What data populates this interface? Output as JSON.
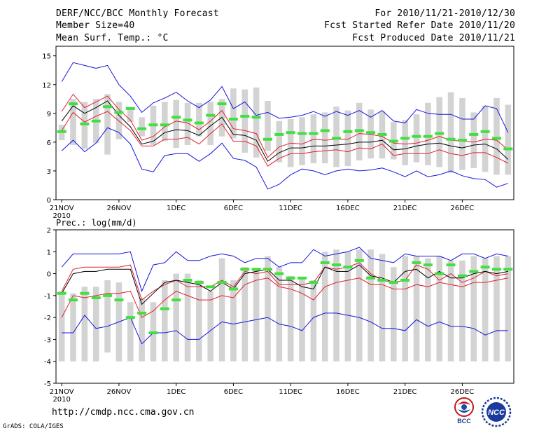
{
  "header": {
    "title": "DERF/NCC/BCC Monthly Forecast",
    "member_size": "Member Size=40",
    "variable": "Mean Surf. Temp.: °C",
    "period": "For 2010/11/21-2010/12/30",
    "started": "Fcst Started Refer Date 2010/11/20",
    "produced": "Fcst Produced Date 2010/11/21"
  },
  "footer": {
    "url": "http://cmdp.ncc.cma.gov.cn",
    "credit": "GrADS: COLA/IGES",
    "logo_left_text": "BCC",
    "logo_right_text": "NCC"
  },
  "colors": {
    "box": "#d3d3d3",
    "median": "#000000",
    "quartile": "#e0202a",
    "extreme": "#1414e0",
    "obs": "#40e040"
  },
  "chart_data": [
    {
      "type": "box",
      "title": "",
      "ylabel": "",
      "ylim": [
        0,
        16
      ],
      "yticks": [
        0,
        3,
        6,
        9,
        12,
        15
      ],
      "xlim": [
        0.5,
        40.5
      ],
      "xticks": [
        1,
        6,
        11,
        16,
        21,
        26,
        31,
        36
      ],
      "xtick_labels": [
        "21NOV",
        "26NOV",
        "1DEC",
        "6DEC",
        "11DEC",
        "16DEC",
        "21DEC",
        "26DEC"
      ],
      "year_label": "2010",
      "days": [
        1,
        2,
        3,
        4,
        5,
        6,
        7,
        8,
        9,
        10,
        11,
        12,
        13,
        14,
        15,
        16,
        17,
        18,
        19,
        20,
        21,
        22,
        23,
        24,
        25,
        26,
        27,
        28,
        29,
        30,
        31,
        32,
        33,
        34,
        35,
        36,
        37,
        38,
        39,
        40
      ],
      "series": {
        "box_high": [
          7.8,
          10.5,
          10.2,
          10.5,
          11.0,
          10.2,
          9.4,
          8.6,
          9.8,
          10.2,
          10.4,
          10.1,
          10.1,
          10.2,
          10.5,
          11.6,
          11.5,
          11.7,
          10.3,
          8.2,
          8.4,
          8.6,
          8.9,
          9.1,
          9.7,
          9.3,
          10.1,
          9.4,
          9.2,
          8.1,
          8.3,
          8.9,
          10.1,
          10.7,
          11.2,
          10.6,
          9.1,
          9.8,
          10.6,
          9.9
        ],
        "box_low": [
          6.2,
          5.7,
          5.3,
          5.9,
          4.7,
          6.3,
          8.1,
          6.6,
          5.7,
          6.1,
          5.4,
          5.7,
          6.6,
          5.7,
          6.6,
          6.4,
          4.9,
          4.4,
          5.1,
          3.9,
          3.4,
          3.6,
          3.8,
          3.8,
          3.4,
          3.5,
          4.1,
          4.3,
          4.3,
          4.2,
          3.6,
          3.9,
          3.6,
          3.4,
          2.8,
          3.1,
          3.3,
          2.9,
          2.6,
          2.6
        ],
        "max": [
          12.3,
          14.3,
          14.0,
          13.7,
          14.0,
          12.0,
          10.8,
          9.1,
          10.1,
          10.6,
          11.2,
          10.3,
          9.6,
          10.4,
          11.8,
          9.5,
          10.2,
          8.8,
          9.1,
          8.5,
          8.6,
          8.8,
          9.2,
          8.7,
          9.2,
          8.8,
          9.3,
          8.6,
          9.3,
          8.2,
          8.0,
          9.4,
          9.0,
          8.9,
          8.9,
          8.4,
          8.4,
          9.8,
          9.5,
          7.0
        ],
        "q3": [
          9.2,
          11.0,
          9.6,
          10.2,
          10.8,
          9.4,
          8.3,
          6.2,
          6.6,
          7.6,
          8.2,
          8.0,
          7.3,
          8.2,
          9.3,
          7.4,
          7.2,
          6.9,
          4.4,
          5.5,
          5.9,
          5.8,
          6.3,
          6.2,
          6.3,
          6.3,
          6.9,
          6.8,
          6.6,
          5.9,
          5.8,
          5.9,
          6.2,
          6.6,
          6.2,
          6.1,
          6.0,
          6.3,
          6.2,
          5.2
        ],
        "median": [
          8.2,
          9.8,
          9.0,
          9.6,
          10.3,
          8.8,
          7.6,
          5.8,
          6.1,
          7.0,
          7.3,
          7.2,
          6.7,
          7.7,
          8.6,
          6.8,
          6.7,
          6.2,
          4.0,
          4.9,
          5.4,
          5.4,
          5.6,
          5.6,
          5.7,
          5.8,
          6.0,
          6.0,
          6.2,
          5.2,
          5.3,
          5.6,
          5.8,
          5.9,
          5.6,
          5.4,
          5.7,
          5.8,
          5.3,
          4.2
        ],
        "q1": [
          7.2,
          9.1,
          8.1,
          8.7,
          9.2,
          8.2,
          7.2,
          5.6,
          5.6,
          6.3,
          6.3,
          6.5,
          5.8,
          6.9,
          7.9,
          6.1,
          6.1,
          5.6,
          3.5,
          4.3,
          4.8,
          4.8,
          5.0,
          5.1,
          5.2,
          5.0,
          5.4,
          5.3,
          5.8,
          4.6,
          4.8,
          4.8,
          4.8,
          5.2,
          4.8,
          4.6,
          4.9,
          4.9,
          4.4,
          3.8
        ],
        "min": [
          5.1,
          6.2,
          5.0,
          5.9,
          7.5,
          7.0,
          5.8,
          3.2,
          2.9,
          4.6,
          4.8,
          4.8,
          4.0,
          4.8,
          5.9,
          4.3,
          4.1,
          3.4,
          1.1,
          1.6,
          2.6,
          3.2,
          3.0,
          2.6,
          3.0,
          3.2,
          3.0,
          3.1,
          3.3,
          2.9,
          2.4,
          3.0,
          2.4,
          2.6,
          3.0,
          2.5,
          2.2,
          2.1,
          1.3,
          1.7
        ],
        "observed": [
          7.1,
          10.0,
          7.9,
          8.2,
          9.7,
          9.1,
          9.5,
          7.4,
          7.8,
          7.8,
          8.6,
          8.3,
          8.0,
          8.8,
          10.0,
          8.4,
          8.7,
          8.6,
          6.3,
          6.8,
          7.0,
          6.9,
          6.9,
          7.2,
          6.4,
          7.1,
          7.2,
          7.0,
          6.8,
          6.1,
          6.4,
          6.6,
          6.6,
          6.9,
          6.3,
          6.2,
          6.8,
          7.1,
          6.4,
          5.3
        ]
      }
    },
    {
      "type": "box",
      "title": "Prec.: log(mm/d)",
      "ylabel": "",
      "ylim": [
        -5,
        2
      ],
      "yticks": [
        -5,
        -4,
        -3,
        -2,
        -1,
        0,
        1,
        2
      ],
      "xlim": [
        0.5,
        40.5
      ],
      "xticks": [
        1,
        6,
        11,
        16,
        21,
        26,
        31,
        36
      ],
      "xtick_labels": [
        "21NOV",
        "26NOV",
        "1DEC",
        "6DEC",
        "11DEC",
        "16DEC",
        "21DEC",
        "26DEC"
      ],
      "year_label": "2010",
      "days": [
        1,
        2,
        3,
        4,
        5,
        6,
        7,
        8,
        9,
        10,
        11,
        12,
        13,
        14,
        15,
        16,
        17,
        18,
        19,
        20,
        21,
        22,
        23,
        24,
        25,
        26,
        27,
        28,
        29,
        30,
        31,
        32,
        33,
        34,
        35,
        36,
        37,
        38,
        39,
        40
      ],
      "series": {
        "box_high": [
          -0.8,
          -0.9,
          -0.6,
          -0.6,
          -0.3,
          -0.4,
          -1.3,
          -1.1,
          -1.3,
          -0.3,
          0.0,
          0.0,
          -0.3,
          -0.8,
          0.7,
          -0.3,
          0.3,
          0.2,
          0.8,
          0.3,
          -0.1,
          -0.2,
          -0.3,
          1.0,
          1.1,
          1.0,
          1.1,
          1.1,
          0.9,
          0.3,
          0.8,
          0.8,
          0.7,
          0.8,
          0.6,
          0.6,
          0.8,
          0.7,
          0.8,
          0.8
        ],
        "box_low": [
          -4.0,
          -4.0,
          -4.0,
          -4.0,
          -3.6,
          -4.0,
          -4.0,
          -4.0,
          -4.0,
          -4.0,
          -4.0,
          -4.0,
          -4.0,
          -4.0,
          -4.0,
          -4.0,
          -4.0,
          -4.0,
          -4.0,
          -4.0,
          -4.0,
          -4.0,
          -4.0,
          -4.0,
          -4.0,
          -4.0,
          -4.0,
          -4.0,
          -4.0,
          -4.0,
          -4.0,
          -4.0,
          -4.0,
          -4.0,
          -4.0,
          -4.0,
          -4.0,
          -4.0,
          -4.0,
          -4.0
        ],
        "max": [
          0.3,
          0.9,
          0.9,
          0.9,
          0.9,
          0.9,
          1.0,
          -0.8,
          0.4,
          0.5,
          1.0,
          0.6,
          0.6,
          0.8,
          0.9,
          0.8,
          0.5,
          0.7,
          0.7,
          0.3,
          0.5,
          0.5,
          1.1,
          0.8,
          0.9,
          1.0,
          1.2,
          0.7,
          0.6,
          0.5,
          0.9,
          0.8,
          0.8,
          0.8,
          0.6,
          0.9,
          0.9,
          0.7,
          0.9,
          0.8
        ],
        "q3": [
          -0.8,
          0.2,
          0.3,
          0.3,
          0.3,
          0.3,
          0.4,
          -1.2,
          -0.8,
          -0.5,
          -0.3,
          -0.6,
          -0.6,
          -0.6,
          -0.3,
          -0.6,
          0.1,
          0.0,
          0.1,
          -0.5,
          -0.5,
          -0.5,
          -0.4,
          0.3,
          0.2,
          0.3,
          0.5,
          0.0,
          -0.3,
          -0.4,
          -0.3,
          0.4,
          0.2,
          -0.3,
          0.0,
          -0.4,
          -0.2,
          0.1,
          -0.1,
          0.0
        ],
        "median": [
          -0.9,
          0.0,
          0.1,
          0.1,
          0.2,
          0.2,
          0.2,
          -1.4,
          -0.9,
          -0.4,
          -0.3,
          -0.4,
          -0.5,
          -0.8,
          -0.4,
          -0.7,
          0.0,
          0.1,
          0.2,
          -0.3,
          -0.3,
          -0.6,
          -0.7,
          0.3,
          0.1,
          0.1,
          0.4,
          -0.1,
          -0.2,
          -0.4,
          0.1,
          0.2,
          -0.2,
          0.1,
          -0.2,
          -0.2,
          0.0,
          0.1,
          0.0,
          0.1
        ],
        "q1": [
          -2.0,
          -1.0,
          -1.1,
          -1.0,
          -0.9,
          -0.9,
          -0.8,
          -2.0,
          -1.7,
          -1.2,
          -0.8,
          -1.0,
          -1.2,
          -1.2,
          -1.0,
          -1.1,
          -0.5,
          -0.3,
          -0.2,
          -0.6,
          -0.7,
          -0.9,
          -1.2,
          -0.6,
          -0.4,
          -0.3,
          -0.2,
          -0.5,
          -0.5,
          -0.7,
          -0.7,
          -0.5,
          -0.6,
          -0.4,
          -0.5,
          -0.6,
          -0.4,
          -0.4,
          -0.3,
          -0.2
        ],
        "min": [
          -2.7,
          -2.7,
          -1.9,
          -2.5,
          -2.4,
          -2.2,
          -2.0,
          -3.2,
          -2.7,
          -2.7,
          -2.6,
          -3.0,
          -3.0,
          -2.6,
          -2.2,
          -2.3,
          -2.2,
          -2.1,
          -2.0,
          -2.3,
          -2.4,
          -2.6,
          -2.0,
          -1.8,
          -1.8,
          -1.9,
          -2.0,
          -2.2,
          -2.5,
          -2.5,
          -2.6,
          -2.1,
          -2.4,
          -2.2,
          -2.4,
          -2.4,
          -2.5,
          -2.8,
          -2.6,
          -2.6
        ],
        "observed": [
          -0.9,
          -1.2,
          -0.9,
          -1.1,
          -1.0,
          -1.2,
          -2.0,
          -1.8,
          -2.7,
          -1.6,
          -1.2,
          -0.3,
          -0.4,
          -0.6,
          -0.4,
          -0.7,
          0.2,
          0.2,
          0.2,
          0.0,
          -0.2,
          -0.2,
          -0.4,
          0.5,
          0.4,
          0.3,
          0.6,
          -0.2,
          -0.3,
          -0.4,
          -0.3,
          0.5,
          0.4,
          0.0,
          0.4,
          -0.1,
          0.1,
          0.3,
          0.2,
          0.2
        ]
      }
    }
  ]
}
